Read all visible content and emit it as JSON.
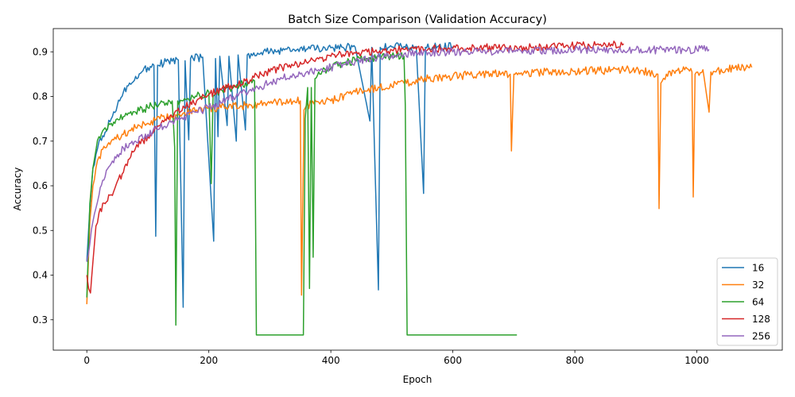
{
  "chart_data": {
    "type": "line",
    "title": "Batch Size Comparison (Validation Accuracy)",
    "xlabel": "Epoch",
    "ylabel": "Accuracy",
    "xlim": [
      -55,
      1140
    ],
    "ylim": [
      0.232,
      0.952
    ],
    "xticks": [
      0,
      200,
      400,
      600,
      800,
      1000
    ],
    "yticks": [
      0.3,
      0.4,
      0.5,
      0.6,
      0.7,
      0.8,
      0.9
    ],
    "legend_position": "lower-right",
    "grid": false,
    "series": [
      {
        "name": "16",
        "color": "#1f77b4",
        "points": [
          [
            0,
            0.43
          ],
          [
            5,
            0.55
          ],
          [
            10,
            0.64
          ],
          [
            15,
            0.67
          ],
          [
            20,
            0.7
          ],
          [
            30,
            0.72
          ],
          [
            40,
            0.75
          ],
          [
            50,
            0.78
          ],
          [
            60,
            0.81
          ],
          [
            70,
            0.83
          ],
          [
            80,
            0.845
          ],
          [
            90,
            0.855
          ],
          [
            100,
            0.865
          ],
          [
            110,
            0.87
          ],
          [
            113,
            0.487
          ],
          [
            116,
            0.87
          ],
          [
            130,
            0.878
          ],
          [
            150,
            0.882
          ],
          [
            158,
            0.328
          ],
          [
            161,
            0.88
          ],
          [
            167,
            0.703
          ],
          [
            170,
            0.885
          ],
          [
            190,
            0.888
          ],
          [
            208,
            0.476
          ],
          [
            211,
            0.885
          ],
          [
            215,
            0.71
          ],
          [
            218,
            0.89
          ],
          [
            230,
            0.735
          ],
          [
            233,
            0.89
          ],
          [
            245,
            0.7
          ],
          [
            248,
            0.893
          ],
          [
            260,
            0.725
          ],
          [
            263,
            0.893
          ],
          [
            280,
            0.897
          ],
          [
            300,
            0.9
          ],
          [
            320,
            0.902
          ],
          [
            340,
            0.905
          ],
          [
            360,
            0.906
          ],
          [
            380,
            0.908
          ],
          [
            400,
            0.909
          ],
          [
            420,
            0.91
          ],
          [
            440,
            0.91
          ],
          [
            464,
            0.745
          ],
          [
            467,
            0.91
          ],
          [
            478,
            0.367
          ],
          [
            481,
            0.91
          ],
          [
            500,
            0.911
          ],
          [
            520,
            0.912
          ],
          [
            540,
            0.912
          ],
          [
            552,
            0.583
          ],
          [
            555,
            0.91
          ],
          [
            575,
            0.912
          ],
          [
            600,
            0.912
          ]
        ]
      },
      {
        "name": "32",
        "color": "#ff7f0e",
        "points": [
          [
            0,
            0.335
          ],
          [
            5,
            0.52
          ],
          [
            10,
            0.6
          ],
          [
            15,
            0.64
          ],
          [
            20,
            0.665
          ],
          [
            30,
            0.685
          ],
          [
            40,
            0.7
          ],
          [
            60,
            0.715
          ],
          [
            80,
            0.73
          ],
          [
            100,
            0.74
          ],
          [
            120,
            0.75
          ],
          [
            150,
            0.76
          ],
          [
            180,
            0.77
          ],
          [
            220,
            0.775
          ],
          [
            260,
            0.78
          ],
          [
            300,
            0.785
          ],
          [
            340,
            0.79
          ],
          [
            350,
            0.79
          ],
          [
            352,
            0.355
          ],
          [
            356,
            0.77
          ],
          [
            360,
            0.78
          ],
          [
            400,
            0.79
          ],
          [
            440,
            0.81
          ],
          [
            480,
            0.82
          ],
          [
            520,
            0.83
          ],
          [
            560,
            0.84
          ],
          [
            600,
            0.845
          ],
          [
            640,
            0.85
          ],
          [
            680,
            0.852
          ],
          [
            694,
            0.85
          ],
          [
            696,
            0.678
          ],
          [
            700,
            0.85
          ],
          [
            720,
            0.852
          ],
          [
            760,
            0.855
          ],
          [
            800,
            0.857
          ],
          [
            840,
            0.858
          ],
          [
            880,
            0.86
          ],
          [
            900,
            0.86
          ],
          [
            920,
            0.855
          ],
          [
            936,
            0.85
          ],
          [
            938,
            0.549
          ],
          [
            941,
            0.83
          ],
          [
            950,
            0.85
          ],
          [
            980,
            0.86
          ],
          [
            992,
            0.855
          ],
          [
            994,
            0.575
          ],
          [
            997,
            0.85
          ],
          [
            1010,
            0.86
          ],
          [
            1020,
            0.765
          ],
          [
            1023,
            0.855
          ],
          [
            1050,
            0.862
          ],
          [
            1090,
            0.865
          ]
        ]
      },
      {
        "name": "64",
        "color": "#2ca02c",
        "points": [
          [
            0,
            0.35
          ],
          [
            5,
            0.56
          ],
          [
            10,
            0.64
          ],
          [
            15,
            0.68
          ],
          [
            20,
            0.71
          ],
          [
            30,
            0.73
          ],
          [
            40,
            0.74
          ],
          [
            60,
            0.755
          ],
          [
            80,
            0.765
          ],
          [
            100,
            0.775
          ],
          [
            120,
            0.785
          ],
          [
            140,
            0.79
          ],
          [
            144,
            0.687
          ],
          [
            146,
            0.288
          ],
          [
            149,
            0.79
          ],
          [
            160,
            0.795
          ],
          [
            180,
            0.8
          ],
          [
            200,
            0.81
          ],
          [
            204,
            0.605
          ],
          [
            207,
            0.8
          ],
          [
            220,
            0.815
          ],
          [
            240,
            0.82
          ],
          [
            260,
            0.83
          ],
          [
            275,
            0.835
          ],
          [
            278,
            0.266
          ],
          [
            355,
            0.266
          ],
          [
            358,
            0.75
          ],
          [
            362,
            0.82
          ],
          [
            365,
            0.37
          ],
          [
            368,
            0.82
          ],
          [
            371,
            0.44
          ],
          [
            374,
            0.84
          ],
          [
            380,
            0.855
          ],
          [
            400,
            0.865
          ],
          [
            420,
            0.875
          ],
          [
            440,
            0.88
          ],
          [
            460,
            0.885
          ],
          [
            480,
            0.888
          ],
          [
            500,
            0.89
          ],
          [
            520,
            0.89
          ],
          [
            522,
            0.78
          ],
          [
            525,
            0.266
          ],
          [
            705,
            0.266
          ]
        ]
      },
      {
        "name": "128",
        "color": "#d62728",
        "points": [
          [
            0,
            0.4
          ],
          [
            3,
            0.37
          ],
          [
            6,
            0.36
          ],
          [
            10,
            0.43
          ],
          [
            15,
            0.51
          ],
          [
            20,
            0.54
          ],
          [
            30,
            0.56
          ],
          [
            40,
            0.58
          ],
          [
            50,
            0.61
          ],
          [
            60,
            0.63
          ],
          [
            70,
            0.66
          ],
          [
            80,
            0.685
          ],
          [
            100,
            0.71
          ],
          [
            120,
            0.735
          ],
          [
            140,
            0.755
          ],
          [
            160,
            0.775
          ],
          [
            180,
            0.79
          ],
          [
            200,
            0.805
          ],
          [
            220,
            0.815
          ],
          [
            240,
            0.825
          ],
          [
            260,
            0.835
          ],
          [
            280,
            0.845
          ],
          [
            300,
            0.855
          ],
          [
            320,
            0.865
          ],
          [
            340,
            0.87
          ],
          [
            360,
            0.877
          ],
          [
            380,
            0.884
          ],
          [
            400,
            0.89
          ],
          [
            420,
            0.894
          ],
          [
            440,
            0.897
          ],
          [
            460,
            0.9
          ],
          [
            480,
            0.902
          ],
          [
            500,
            0.904
          ],
          [
            520,
            0.905
          ],
          [
            540,
            0.906
          ],
          [
            560,
            0.907
          ],
          [
            600,
            0.908
          ],
          [
            640,
            0.909
          ],
          [
            680,
            0.91
          ],
          [
            720,
            0.911
          ],
          [
            760,
            0.912
          ],
          [
            800,
            0.913
          ],
          [
            840,
            0.915
          ],
          [
            860,
            0.917
          ],
          [
            880,
            0.918
          ]
        ]
      },
      {
        "name": "256",
        "color": "#9467bd",
        "points": [
          [
            0,
            0.43
          ],
          [
            5,
            0.47
          ],
          [
            10,
            0.52
          ],
          [
            15,
            0.55
          ],
          [
            20,
            0.58
          ],
          [
            30,
            0.62
          ],
          [
            40,
            0.65
          ],
          [
            50,
            0.67
          ],
          [
            60,
            0.685
          ],
          [
            80,
            0.7
          ],
          [
            100,
            0.715
          ],
          [
            120,
            0.73
          ],
          [
            140,
            0.745
          ],
          [
            160,
            0.755
          ],
          [
            180,
            0.765
          ],
          [
            200,
            0.775
          ],
          [
            220,
            0.785
          ],
          [
            240,
            0.8
          ],
          [
            260,
            0.81
          ],
          [
            280,
            0.82
          ],
          [
            300,
            0.83
          ],
          [
            320,
            0.84
          ],
          [
            340,
            0.847
          ],
          [
            360,
            0.855
          ],
          [
            380,
            0.86
          ],
          [
            400,
            0.865
          ],
          [
            420,
            0.872
          ],
          [
            440,
            0.878
          ],
          [
            460,
            0.883
          ],
          [
            480,
            0.888
          ],
          [
            500,
            0.892
          ],
          [
            520,
            0.895
          ],
          [
            540,
            0.897
          ],
          [
            560,
            0.898
          ],
          [
            580,
            0.899
          ],
          [
            600,
            0.9
          ],
          [
            640,
            0.901
          ],
          [
            680,
            0.902
          ],
          [
            700,
            0.903
          ],
          [
            720,
            0.903
          ],
          [
            760,
            0.904
          ],
          [
            800,
            0.904
          ],
          [
            840,
            0.904
          ],
          [
            880,
            0.904
          ],
          [
            920,
            0.904
          ],
          [
            960,
            0.905
          ],
          [
            1000,
            0.905
          ],
          [
            1020,
            0.905
          ]
        ]
      }
    ]
  }
}
